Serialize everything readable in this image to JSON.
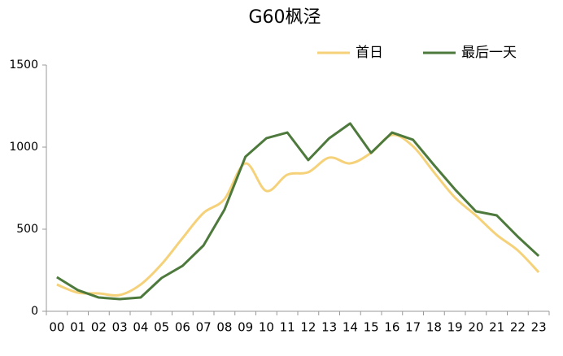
{
  "chart_data": {
    "type": "line",
    "title": "G60枫泾",
    "categories": [
      "00",
      "01",
      "02",
      "03",
      "04",
      "05",
      "06",
      "07",
      "08",
      "09",
      "10",
      "11",
      "12",
      "13",
      "14",
      "15",
      "16",
      "17",
      "18",
      "19",
      "20",
      "21",
      "22",
      "23"
    ],
    "series": [
      {
        "name": "首日",
        "color": "#f5d27a",
        "smooth": true,
        "values": [
          163,
          114,
          109,
          99,
          163,
          287,
          446,
          599,
          683,
          901,
          733,
          832,
          847,
          936,
          901,
          965,
          1074,
          1005,
          847,
          693,
          584,
          465,
          371,
          238
        ]
      },
      {
        "name": "最后一天",
        "color": "#4d7a3c",
        "smooth": false,
        "values": [
          208,
          129,
          84,
          74,
          84,
          203,
          277,
          401,
          619,
          941,
          1054,
          1089,
          921,
          1054,
          1144,
          965,
          1089,
          1045,
          891,
          743,
          609,
          584,
          455,
          337
        ]
      }
    ],
    "ylim": [
      0,
      1500
    ],
    "yticks": [
      0,
      500,
      1000,
      1500
    ],
    "grid": false,
    "legend": "top-right"
  }
}
